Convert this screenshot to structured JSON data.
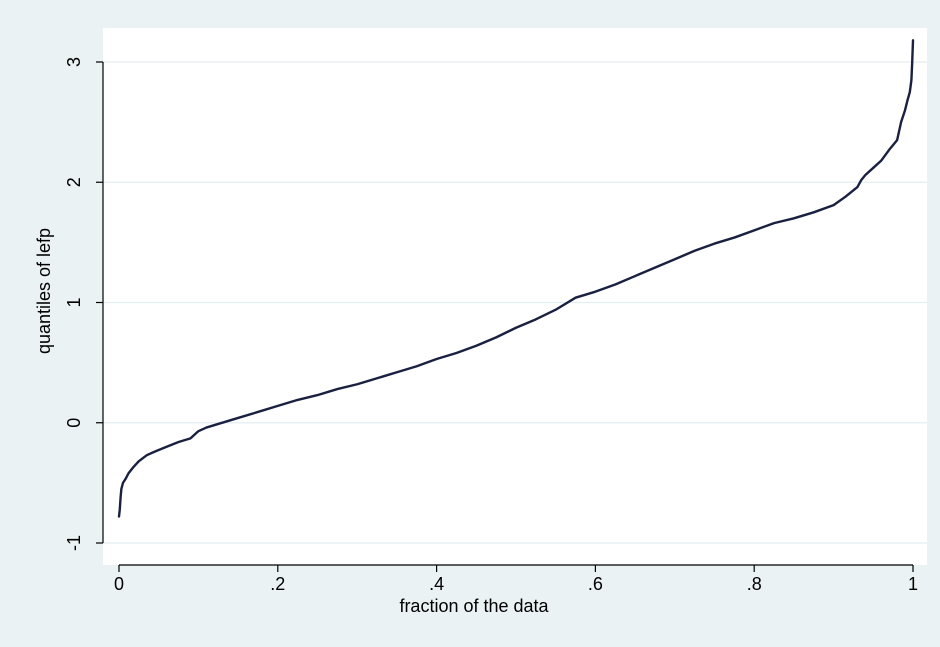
{
  "chart_data": {
    "type": "line",
    "title": "",
    "xlabel": "fraction of the data",
    "ylabel": "quantiles of lefp",
    "xlim": [
      0,
      1
    ],
    "ylim": [
      -1,
      3.2
    ],
    "grid": true,
    "legend": "none",
    "x_ticks": [
      {
        "value": 0,
        "label": "0"
      },
      {
        "value": 0.2,
        "label": ".2"
      },
      {
        "value": 0.4,
        "label": ".4"
      },
      {
        "value": 0.6,
        "label": ".6"
      },
      {
        "value": 0.8,
        "label": ".8"
      },
      {
        "value": 1,
        "label": "1"
      }
    ],
    "y_ticks": [
      {
        "value": -1,
        "label": "-1"
      },
      {
        "value": 0,
        "label": "0"
      },
      {
        "value": 1,
        "label": "1"
      },
      {
        "value": 2,
        "label": "2"
      },
      {
        "value": 3,
        "label": "3"
      }
    ],
    "series": [
      {
        "x": [
          0.0,
          0.001,
          0.002,
          0.003,
          0.005,
          0.008,
          0.012,
          0.018,
          0.025,
          0.035,
          0.045,
          0.06,
          0.075,
          0.09,
          0.095,
          0.1,
          0.11,
          0.125,
          0.15,
          0.175,
          0.2,
          0.225,
          0.25,
          0.275,
          0.3,
          0.325,
          0.35,
          0.375,
          0.4,
          0.425,
          0.45,
          0.475,
          0.5,
          0.525,
          0.55,
          0.575,
          0.6,
          0.625,
          0.65,
          0.675,
          0.7,
          0.725,
          0.75,
          0.775,
          0.8,
          0.825,
          0.85,
          0.875,
          0.9,
          0.915,
          0.93,
          0.935,
          0.94,
          0.95,
          0.96,
          0.97,
          0.98,
          0.985,
          0.99,
          0.993,
          0.996,
          0.998,
          0.999,
          1.0
        ],
        "y": [
          -0.78,
          -0.72,
          -0.62,
          -0.55,
          -0.5,
          -0.47,
          -0.42,
          -0.37,
          -0.32,
          -0.27,
          -0.24,
          -0.2,
          -0.16,
          -0.13,
          -0.1,
          -0.07,
          -0.04,
          -0.01,
          0.04,
          0.09,
          0.14,
          0.19,
          0.23,
          0.28,
          0.32,
          0.37,
          0.42,
          0.47,
          0.53,
          0.58,
          0.64,
          0.71,
          0.79,
          0.86,
          0.94,
          1.04,
          1.09,
          1.15,
          1.22,
          1.29,
          1.36,
          1.43,
          1.49,
          1.54,
          1.6,
          1.66,
          1.7,
          1.75,
          1.81,
          1.88,
          1.96,
          2.02,
          2.06,
          2.12,
          2.18,
          2.27,
          2.35,
          2.5,
          2.6,
          2.68,
          2.75,
          2.85,
          3.0,
          3.18
        ]
      }
    ]
  }
}
